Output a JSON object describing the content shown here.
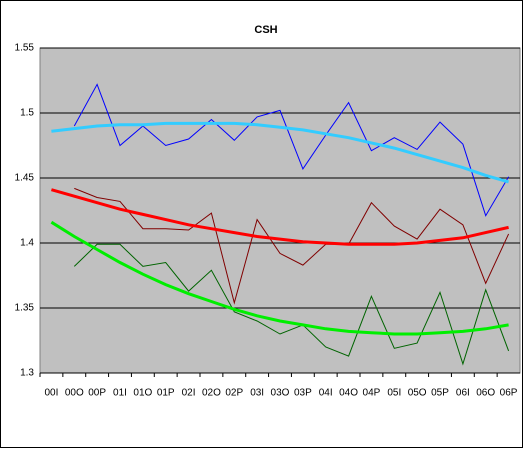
{
  "chart_data": {
    "type": "line",
    "title": "CSH",
    "categories": [
      "00I",
      "00O",
      "00P",
      "01I",
      "01O",
      "01P",
      "02I",
      "02O",
      "02P",
      "03I",
      "03O",
      "03P",
      "04I",
      "04O",
      "04P",
      "05I",
      "05O",
      "05P",
      "06I",
      "06O",
      "06P"
    ],
    "ylim": [
      1.3,
      1.55
    ],
    "yticks": [
      1.3,
      1.35,
      1.4,
      1.45,
      1.5,
      1.55
    ],
    "grid": true,
    "plot_background": "#c0c0c0",
    "series": [
      {
        "color": "#0000ff",
        "width": 1,
        "values": [
          null,
          1.49,
          1.522,
          1.475,
          1.49,
          1.475,
          1.48,
          1.495,
          1.479,
          1.497,
          1.502,
          1.457,
          1.483,
          1.508,
          1.471,
          1.481,
          1.472,
          1.493,
          1.476,
          1.421,
          1.451
        ]
      },
      {
        "color": "#800000",
        "width": 1,
        "values": [
          null,
          1.442,
          1.435,
          1.432,
          1.411,
          1.411,
          1.41,
          1.423,
          1.354,
          1.418,
          1.392,
          1.383,
          1.399,
          1.399,
          1.431,
          1.413,
          1.403,
          1.426,
          1.414,
          1.369,
          1.407
        ]
      },
      {
        "color": "#006400",
        "width": 1,
        "values": [
          null,
          1.382,
          1.399,
          1.399,
          1.382,
          1.385,
          1.363,
          1.379,
          1.347,
          1.34,
          1.33,
          1.337,
          1.32,
          1.313,
          1.359,
          1.319,
          1.323,
          1.362,
          1.307,
          1.364,
          1.317
        ]
      },
      {
        "color": "#33ccff",
        "width": 3,
        "values": [
          1.486,
          1.488,
          1.49,
          1.491,
          1.491,
          1.492,
          1.492,
          1.492,
          1.492,
          1.491,
          1.489,
          1.487,
          1.484,
          1.481,
          1.477,
          1.473,
          1.468,
          1.463,
          1.458,
          1.452,
          1.447
        ]
      },
      {
        "color": "#ff0000",
        "width": 3,
        "values": [
          1.441,
          1.436,
          1.431,
          1.426,
          1.422,
          1.418,
          1.414,
          1.411,
          1.408,
          1.405,
          1.403,
          1.401,
          1.4,
          1.399,
          1.399,
          1.399,
          1.4,
          1.402,
          1.404,
          1.408,
          1.412
        ]
      },
      {
        "color": "#00ee00",
        "width": 3,
        "values": [
          1.416,
          1.405,
          1.395,
          1.385,
          1.376,
          1.368,
          1.361,
          1.355,
          1.349,
          1.344,
          1.34,
          1.337,
          1.334,
          1.332,
          1.331,
          1.33,
          1.33,
          1.331,
          1.332,
          1.334,
          1.337
        ]
      }
    ]
  }
}
